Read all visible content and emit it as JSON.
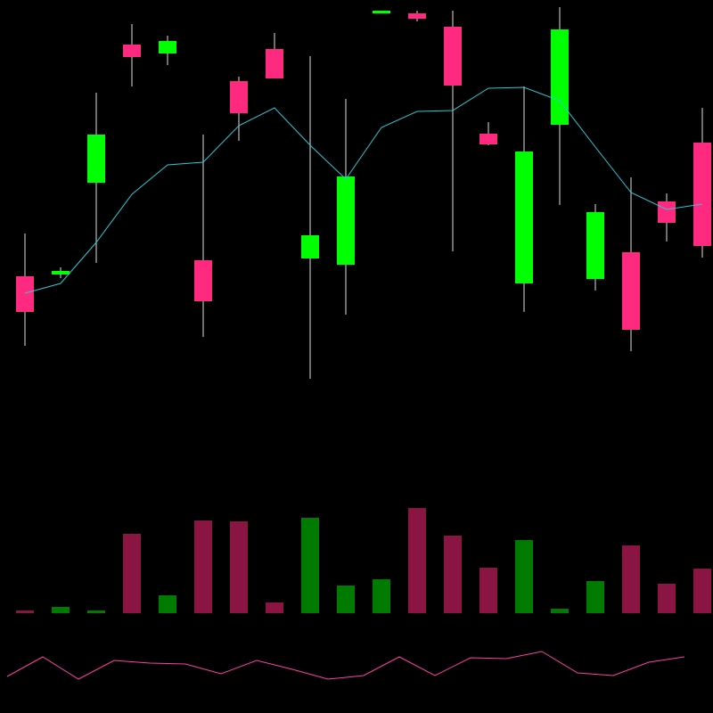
{
  "chart_data": [
    {
      "type": "candlestick",
      "open": [
        490,
        492,
        595,
        750,
        740,
        508,
        709,
        745,
        510,
        503,
        785,
        785,
        770,
        650,
        482,
        660,
        487,
        517,
        574,
        640
      ],
      "high": [
        538,
        500,
        696,
        773,
        760,
        649,
        714,
        763,
        737,
        689,
        788,
        788,
        788,
        663,
        703,
        792,
        571,
        601,
        583,
        679
      ],
      "low": [
        412,
        488,
        505,
        703,
        727,
        422,
        642,
        712,
        375,
        447,
        785,
        776,
        518,
        637,
        450,
        570,
        474,
        406,
        529,
        511
      ],
      "close": [
        450,
        496,
        649,
        736,
        754,
        462,
        673,
        712,
        536,
        602,
        788,
        779,
        704,
        638,
        630,
        767,
        562,
        430,
        550,
        524
      ],
      "up_color": "#00ff00",
      "down_color": "#ff2a7f",
      "wick_color": "#bbbbbb",
      "ma": {
        "color": "#2ec8d8",
        "values": [
          471,
          482,
          528,
          582,
          615,
          618,
          659,
          679,
          637,
          599,
          657,
          675,
          676,
          701,
          702,
          687,
          635,
          584,
          565,
          571
        ]
      },
      "ylim": [
        0,
        800
      ]
    },
    {
      "type": "bar",
      "values": [
        3,
        7,
        3,
        89,
        20,
        104,
        103,
        12,
        107,
        31,
        38,
        118,
        87,
        51,
        82,
        5,
        36,
        76,
        33,
        50
      ],
      "up_color": "#007a00",
      "down_color": "#8b1542",
      "ylim": [
        0,
        120
      ]
    },
    {
      "type": "line",
      "values": [
        41,
        63,
        38,
        59,
        56,
        55,
        44,
        59,
        49,
        38,
        42,
        63,
        42,
        62,
        61,
        69,
        45,
        42,
        57,
        63
      ],
      "color": "#ff3fa8",
      "ylim": [
        0,
        100
      ]
    }
  ]
}
